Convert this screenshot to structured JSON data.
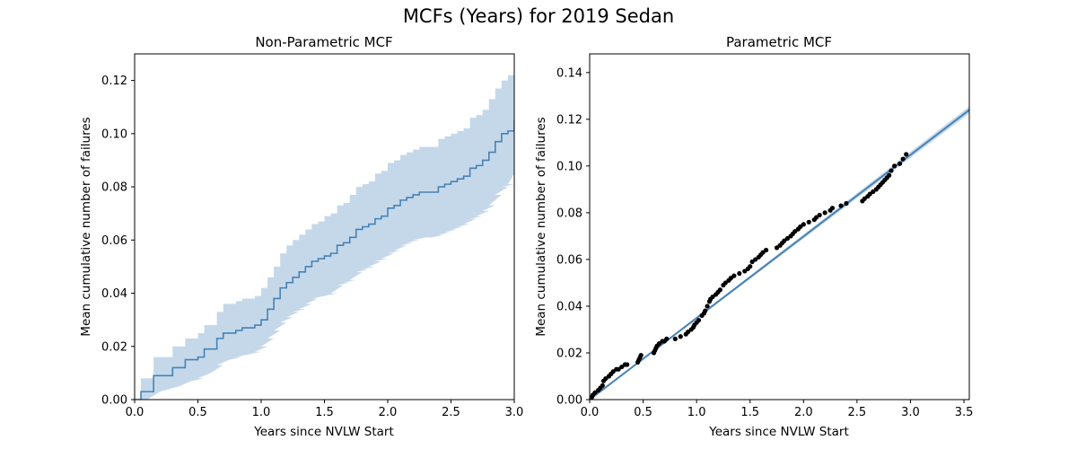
{
  "figure": {
    "title": "MCFs (Years) for 2019 Sedan",
    "colors": {
      "line": "#4682b4",
      "band": "#c5d8ea",
      "points": "#000000",
      "axes": "#000000",
      "background": "#ffffff"
    }
  },
  "chart_data": [
    {
      "type": "line",
      "title": "Non-Parametric MCF",
      "xlabel": "Years since NVLW Start",
      "ylabel": "Mean cumulative number of failures",
      "xlim": [
        0.0,
        3.0
      ],
      "ylim": [
        0.0,
        0.13
      ],
      "xticks": [
        "0.0",
        "0.5",
        "1.0",
        "1.5",
        "2.0",
        "2.5",
        "3.0"
      ],
      "yticks": [
        "0.00",
        "0.02",
        "0.04",
        "0.06",
        "0.08",
        "0.10",
        "0.12"
      ],
      "xtick_values": [
        0.0,
        0.5,
        1.0,
        1.5,
        2.0,
        2.5,
        3.0
      ],
      "ytick_values": [
        0.0,
        0.02,
        0.04,
        0.06,
        0.08,
        0.1,
        0.12
      ],
      "legend": "none",
      "grid": false,
      "series": [
        {
          "kind": "step",
          "x": [
            0.0,
            0.05,
            0.1,
            0.15,
            0.2,
            0.3,
            0.35,
            0.4,
            0.45,
            0.5,
            0.55,
            0.6,
            0.65,
            0.7,
            0.75,
            0.8,
            0.85,
            0.9,
            0.95,
            1.0,
            1.05,
            1.1,
            1.15,
            1.2,
            1.25,
            1.3,
            1.35,
            1.4,
            1.45,
            1.5,
            1.55,
            1.6,
            1.65,
            1.7,
            1.75,
            1.8,
            1.85,
            1.9,
            1.95,
            2.0,
            2.05,
            2.1,
            2.15,
            2.2,
            2.25,
            2.3,
            2.35,
            2.4,
            2.45,
            2.5,
            2.55,
            2.6,
            2.65,
            2.7,
            2.75,
            2.8,
            2.85,
            2.9,
            2.95,
            3.0
          ],
          "y": [
            0.0,
            0.003,
            0.003,
            0.009,
            0.009,
            0.012,
            0.012,
            0.015,
            0.015,
            0.016,
            0.019,
            0.019,
            0.023,
            0.025,
            0.025,
            0.026,
            0.027,
            0.027,
            0.028,
            0.03,
            0.034,
            0.038,
            0.042,
            0.044,
            0.046,
            0.048,
            0.05,
            0.052,
            0.053,
            0.054,
            0.055,
            0.058,
            0.059,
            0.061,
            0.064,
            0.065,
            0.066,
            0.068,
            0.069,
            0.072,
            0.073,
            0.075,
            0.076,
            0.077,
            0.078,
            0.078,
            0.078,
            0.08,
            0.081,
            0.082,
            0.083,
            0.084,
            0.087,
            0.088,
            0.09,
            0.093,
            0.097,
            0.1,
            0.101,
            0.105
          ],
          "lower": [
            0.0,
            0.0,
            0.0,
            0.003,
            0.003,
            0.005,
            0.005,
            0.007,
            0.007,
            0.008,
            0.01,
            0.01,
            0.013,
            0.015,
            0.015,
            0.016,
            0.017,
            0.017,
            0.018,
            0.02,
            0.023,
            0.026,
            0.029,
            0.031,
            0.033,
            0.034,
            0.036,
            0.038,
            0.039,
            0.039,
            0.04,
            0.043,
            0.044,
            0.045,
            0.048,
            0.049,
            0.05,
            0.052,
            0.053,
            0.055,
            0.056,
            0.058,
            0.059,
            0.06,
            0.061,
            0.061,
            0.061,
            0.062,
            0.063,
            0.064,
            0.065,
            0.066,
            0.068,
            0.069,
            0.071,
            0.073,
            0.077,
            0.08,
            0.081,
            0.085
          ],
          "upper": [
            0.0,
            0.008,
            0.008,
            0.016,
            0.016,
            0.02,
            0.02,
            0.023,
            0.023,
            0.025,
            0.028,
            0.028,
            0.033,
            0.036,
            0.036,
            0.037,
            0.038,
            0.038,
            0.039,
            0.042,
            0.046,
            0.05,
            0.055,
            0.058,
            0.06,
            0.062,
            0.064,
            0.066,
            0.067,
            0.069,
            0.07,
            0.073,
            0.074,
            0.077,
            0.08,
            0.081,
            0.082,
            0.085,
            0.086,
            0.089,
            0.09,
            0.092,
            0.093,
            0.094,
            0.095,
            0.095,
            0.095,
            0.098,
            0.099,
            0.1,
            0.101,
            0.102,
            0.106,
            0.107,
            0.109,
            0.113,
            0.117,
            0.12,
            0.122,
            0.125
          ]
        }
      ]
    },
    {
      "type": "scatter",
      "title": "Parametric MCF",
      "xlabel": "Years since NVLW Start",
      "ylabel": "Mean cumulative number of failures",
      "xlim": [
        0.0,
        3.55
      ],
      "ylim": [
        0.0,
        0.148
      ],
      "xticks": [
        "0.0",
        "0.5",
        "1.0",
        "1.5",
        "2.0",
        "2.5",
        "3.0",
        "3.5"
      ],
      "yticks": [
        "0.00",
        "0.02",
        "0.04",
        "0.06",
        "0.08",
        "0.10",
        "0.12",
        "0.14"
      ],
      "xtick_values": [
        0.0,
        0.5,
        1.0,
        1.5,
        2.0,
        2.5,
        3.0,
        3.5
      ],
      "ytick_values": [
        0.0,
        0.02,
        0.04,
        0.06,
        0.08,
        0.1,
        0.12,
        0.14
      ],
      "legend": "none",
      "grid": false,
      "series": [
        {
          "kind": "fit-line",
          "x": [
            0.0,
            3.55
          ],
          "y": [
            0.0,
            0.124
          ],
          "band_halfwidth": [
            0.0,
            0.0015
          ]
        },
        {
          "kind": "points",
          "x": [
            0.02,
            0.03,
            0.05,
            0.08,
            0.1,
            0.12,
            0.13,
            0.15,
            0.18,
            0.2,
            0.22,
            0.25,
            0.27,
            0.3,
            0.33,
            0.35,
            0.45,
            0.46,
            0.47,
            0.48,
            0.6,
            0.61,
            0.62,
            0.63,
            0.65,
            0.68,
            0.7,
            0.72,
            0.8,
            0.85,
            0.9,
            0.92,
            0.95,
            0.97,
            0.98,
            1.0,
            1.02,
            1.05,
            1.07,
            1.08,
            1.1,
            1.12,
            1.13,
            1.15,
            1.18,
            1.2,
            1.22,
            1.25,
            1.27,
            1.3,
            1.32,
            1.35,
            1.4,
            1.45,
            1.48,
            1.5,
            1.52,
            1.55,
            1.58,
            1.6,
            1.62,
            1.65,
            1.75,
            1.78,
            1.8,
            1.82,
            1.85,
            1.88,
            1.9,
            1.92,
            1.95,
            1.97,
            2.0,
            2.05,
            2.1,
            2.12,
            2.15,
            2.2,
            2.25,
            2.27,
            2.35,
            2.4,
            2.55,
            2.57,
            2.6,
            2.62,
            2.65,
            2.68,
            2.7,
            2.72,
            2.74,
            2.76,
            2.78,
            2.8,
            2.82,
            2.85,
            2.9,
            2.93,
            2.96
          ],
          "y": [
            0.001,
            0.002,
            0.003,
            0.004,
            0.005,
            0.006,
            0.008,
            0.009,
            0.01,
            0.011,
            0.012,
            0.013,
            0.013,
            0.014,
            0.015,
            0.015,
            0.016,
            0.017,
            0.018,
            0.019,
            0.02,
            0.021,
            0.022,
            0.023,
            0.024,
            0.025,
            0.025,
            0.026,
            0.026,
            0.027,
            0.028,
            0.029,
            0.03,
            0.031,
            0.032,
            0.033,
            0.034,
            0.036,
            0.037,
            0.038,
            0.04,
            0.042,
            0.043,
            0.044,
            0.045,
            0.046,
            0.047,
            0.049,
            0.05,
            0.051,
            0.052,
            0.053,
            0.054,
            0.055,
            0.056,
            0.057,
            0.059,
            0.06,
            0.061,
            0.062,
            0.063,
            0.064,
            0.065,
            0.066,
            0.067,
            0.068,
            0.069,
            0.07,
            0.071,
            0.072,
            0.073,
            0.074,
            0.075,
            0.076,
            0.077,
            0.078,
            0.079,
            0.08,
            0.081,
            0.082,
            0.083,
            0.084,
            0.085,
            0.086,
            0.087,
            0.088,
            0.089,
            0.09,
            0.091,
            0.092,
            0.093,
            0.094,
            0.095,
            0.096,
            0.098,
            0.1,
            0.101,
            0.103,
            0.105
          ]
        }
      ]
    }
  ]
}
